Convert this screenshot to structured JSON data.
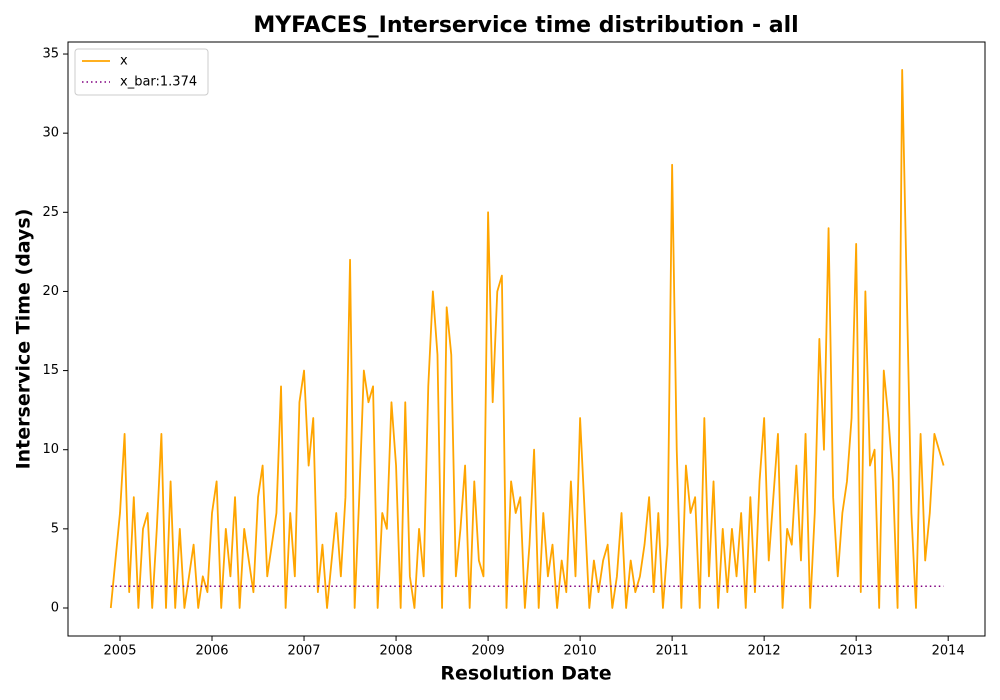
{
  "chart_data": {
    "type": "line",
    "title": "MYFACES_Interservice time distribution - all",
    "x_label": "Resolution Date",
    "y_label": "Interservice Time (days)",
    "x": [
      2004.9,
      2004.95,
      2005,
      2005.05,
      2005.1,
      2005.15,
      2005.2,
      2005.25,
      2005.3,
      2005.35,
      2005.4,
      2005.45,
      2005.5,
      2005.55,
      2005.6,
      2005.65,
      2005.7,
      2005.75,
      2005.8,
      2005.85,
      2005.9,
      2005.95,
      2006,
      2006.05,
      2006.1,
      2006.15,
      2006.2,
      2006.25,
      2006.3,
      2006.35,
      2006.4,
      2006.45,
      2006.5,
      2006.55,
      2006.6,
      2006.65,
      2006.7,
      2006.75,
      2006.8,
      2006.85,
      2006.9,
      2006.95,
      2007,
      2007.05,
      2007.1,
      2007.15,
      2007.2,
      2007.25,
      2007.3,
      2007.35,
      2007.4,
      2007.45,
      2007.5,
      2007.55,
      2007.6,
      2007.65,
      2007.7,
      2007.75,
      2007.8,
      2007.85,
      2007.9,
      2007.95,
      2008,
      2008.05,
      2008.1,
      2008.15,
      2008.2,
      2008.25,
      2008.3,
      2008.35,
      2008.4,
      2008.45,
      2008.5,
      2008.55,
      2008.6,
      2008.65,
      2008.7,
      2008.75,
      2008.8,
      2008.85,
      2008.9,
      2008.95,
      2009,
      2009.05,
      2009.1,
      2009.15,
      2009.2,
      2009.25,
      2009.3,
      2009.35,
      2009.4,
      2009.45,
      2009.5,
      2009.55,
      2009.6,
      2009.65,
      2009.7,
      2009.75,
      2009.8,
      2009.85,
      2009.9,
      2009.95,
      2010,
      2010.05,
      2010.1,
      2010.15,
      2010.2,
      2010.25,
      2010.3,
      2010.35,
      2010.4,
      2010.45,
      2010.5,
      2010.55,
      2010.6,
      2010.65,
      2010.7,
      2010.75,
      2010.8,
      2010.85,
      2010.9,
      2010.95,
      2011,
      2011.05,
      2011.1,
      2011.15,
      2011.2,
      2011.25,
      2011.3,
      2011.35,
      2011.4,
      2011.45,
      2011.5,
      2011.55,
      2011.6,
      2011.65,
      2011.7,
      2011.75,
      2011.8,
      2011.85,
      2011.9,
      2011.95,
      2012,
      2012.05,
      2012.1,
      2012.15,
      2012.2,
      2012.25,
      2012.3,
      2012.35,
      2012.4,
      2012.45,
      2012.5,
      2012.55,
      2012.6,
      2012.65,
      2012.7,
      2012.75,
      2012.8,
      2012.85,
      2012.9,
      2012.95,
      2013,
      2013.05,
      2013.1,
      2013.15,
      2013.2,
      2013.25,
      2013.3,
      2013.35,
      2013.4,
      2013.45,
      2013.5,
      2013.55,
      2013.6,
      2013.65,
      2013.7,
      2013.75,
      2013.8,
      2013.85,
      2013.9,
      2013.95
    ],
    "series": [
      {
        "name": "x",
        "color": "#ffa500",
        "values": [
          0,
          3,
          6,
          11,
          1,
          7,
          0,
          5,
          6,
          0,
          5,
          11,
          0,
          8,
          0,
          5,
          0,
          2,
          4,
          0,
          2,
          1,
          6,
          8,
          0,
          5,
          2,
          7,
          0,
          5,
          3,
          1,
          7,
          9,
          2,
          4,
          6,
          14,
          0,
          6,
          2,
          13,
          15,
          9,
          12,
          1,
          4,
          0,
          3,
          6,
          2,
          7,
          22,
          0,
          7,
          15,
          13,
          14,
          0,
          6,
          5,
          13,
          9,
          0,
          13,
          2,
          0,
          5,
          2,
          14,
          20,
          16,
          0,
          19,
          16,
          2,
          5,
          9,
          0,
          8,
          3,
          2,
          25,
          13,
          20,
          21,
          0,
          8,
          6,
          7,
          0,
          4,
          10,
          0,
          6,
          2,
          4,
          0,
          3,
          1,
          8,
          2,
          12,
          6,
          0,
          3,
          1,
          3,
          4,
          0,
          2,
          6,
          0,
          3,
          1,
          2,
          4,
          7,
          1,
          6,
          0,
          4,
          28,
          10,
          0,
          9,
          6,
          7,
          0,
          12,
          2,
          8,
          0,
          5,
          1,
          5,
          2,
          6,
          0,
          7,
          1,
          8,
          12,
          3,
          7,
          11,
          0,
          5,
          4,
          9,
          3,
          11,
          0,
          6,
          17,
          10,
          24,
          7,
          2,
          6,
          8,
          12,
          23,
          1,
          20,
          9,
          10,
          0,
          15,
          12,
          8,
          0,
          34,
          20,
          6,
          0,
          11,
          3,
          6,
          11,
          10,
          9
        ]
      }
    ],
    "reference_line": {
      "name": "x_bar:1.374",
      "value": 1.374,
      "color": "#800080"
    },
    "xlim": [
      2004.435,
      2014.4
    ],
    "ylim": [
      -1.77,
      35.76
    ],
    "xticks": [
      2005,
      2006,
      2007,
      2008,
      2009,
      2010,
      2011,
      2012,
      2013,
      2014
    ],
    "yticks": [
      0,
      5,
      10,
      15,
      20,
      25,
      30,
      35
    ],
    "legend": "upper left"
  }
}
